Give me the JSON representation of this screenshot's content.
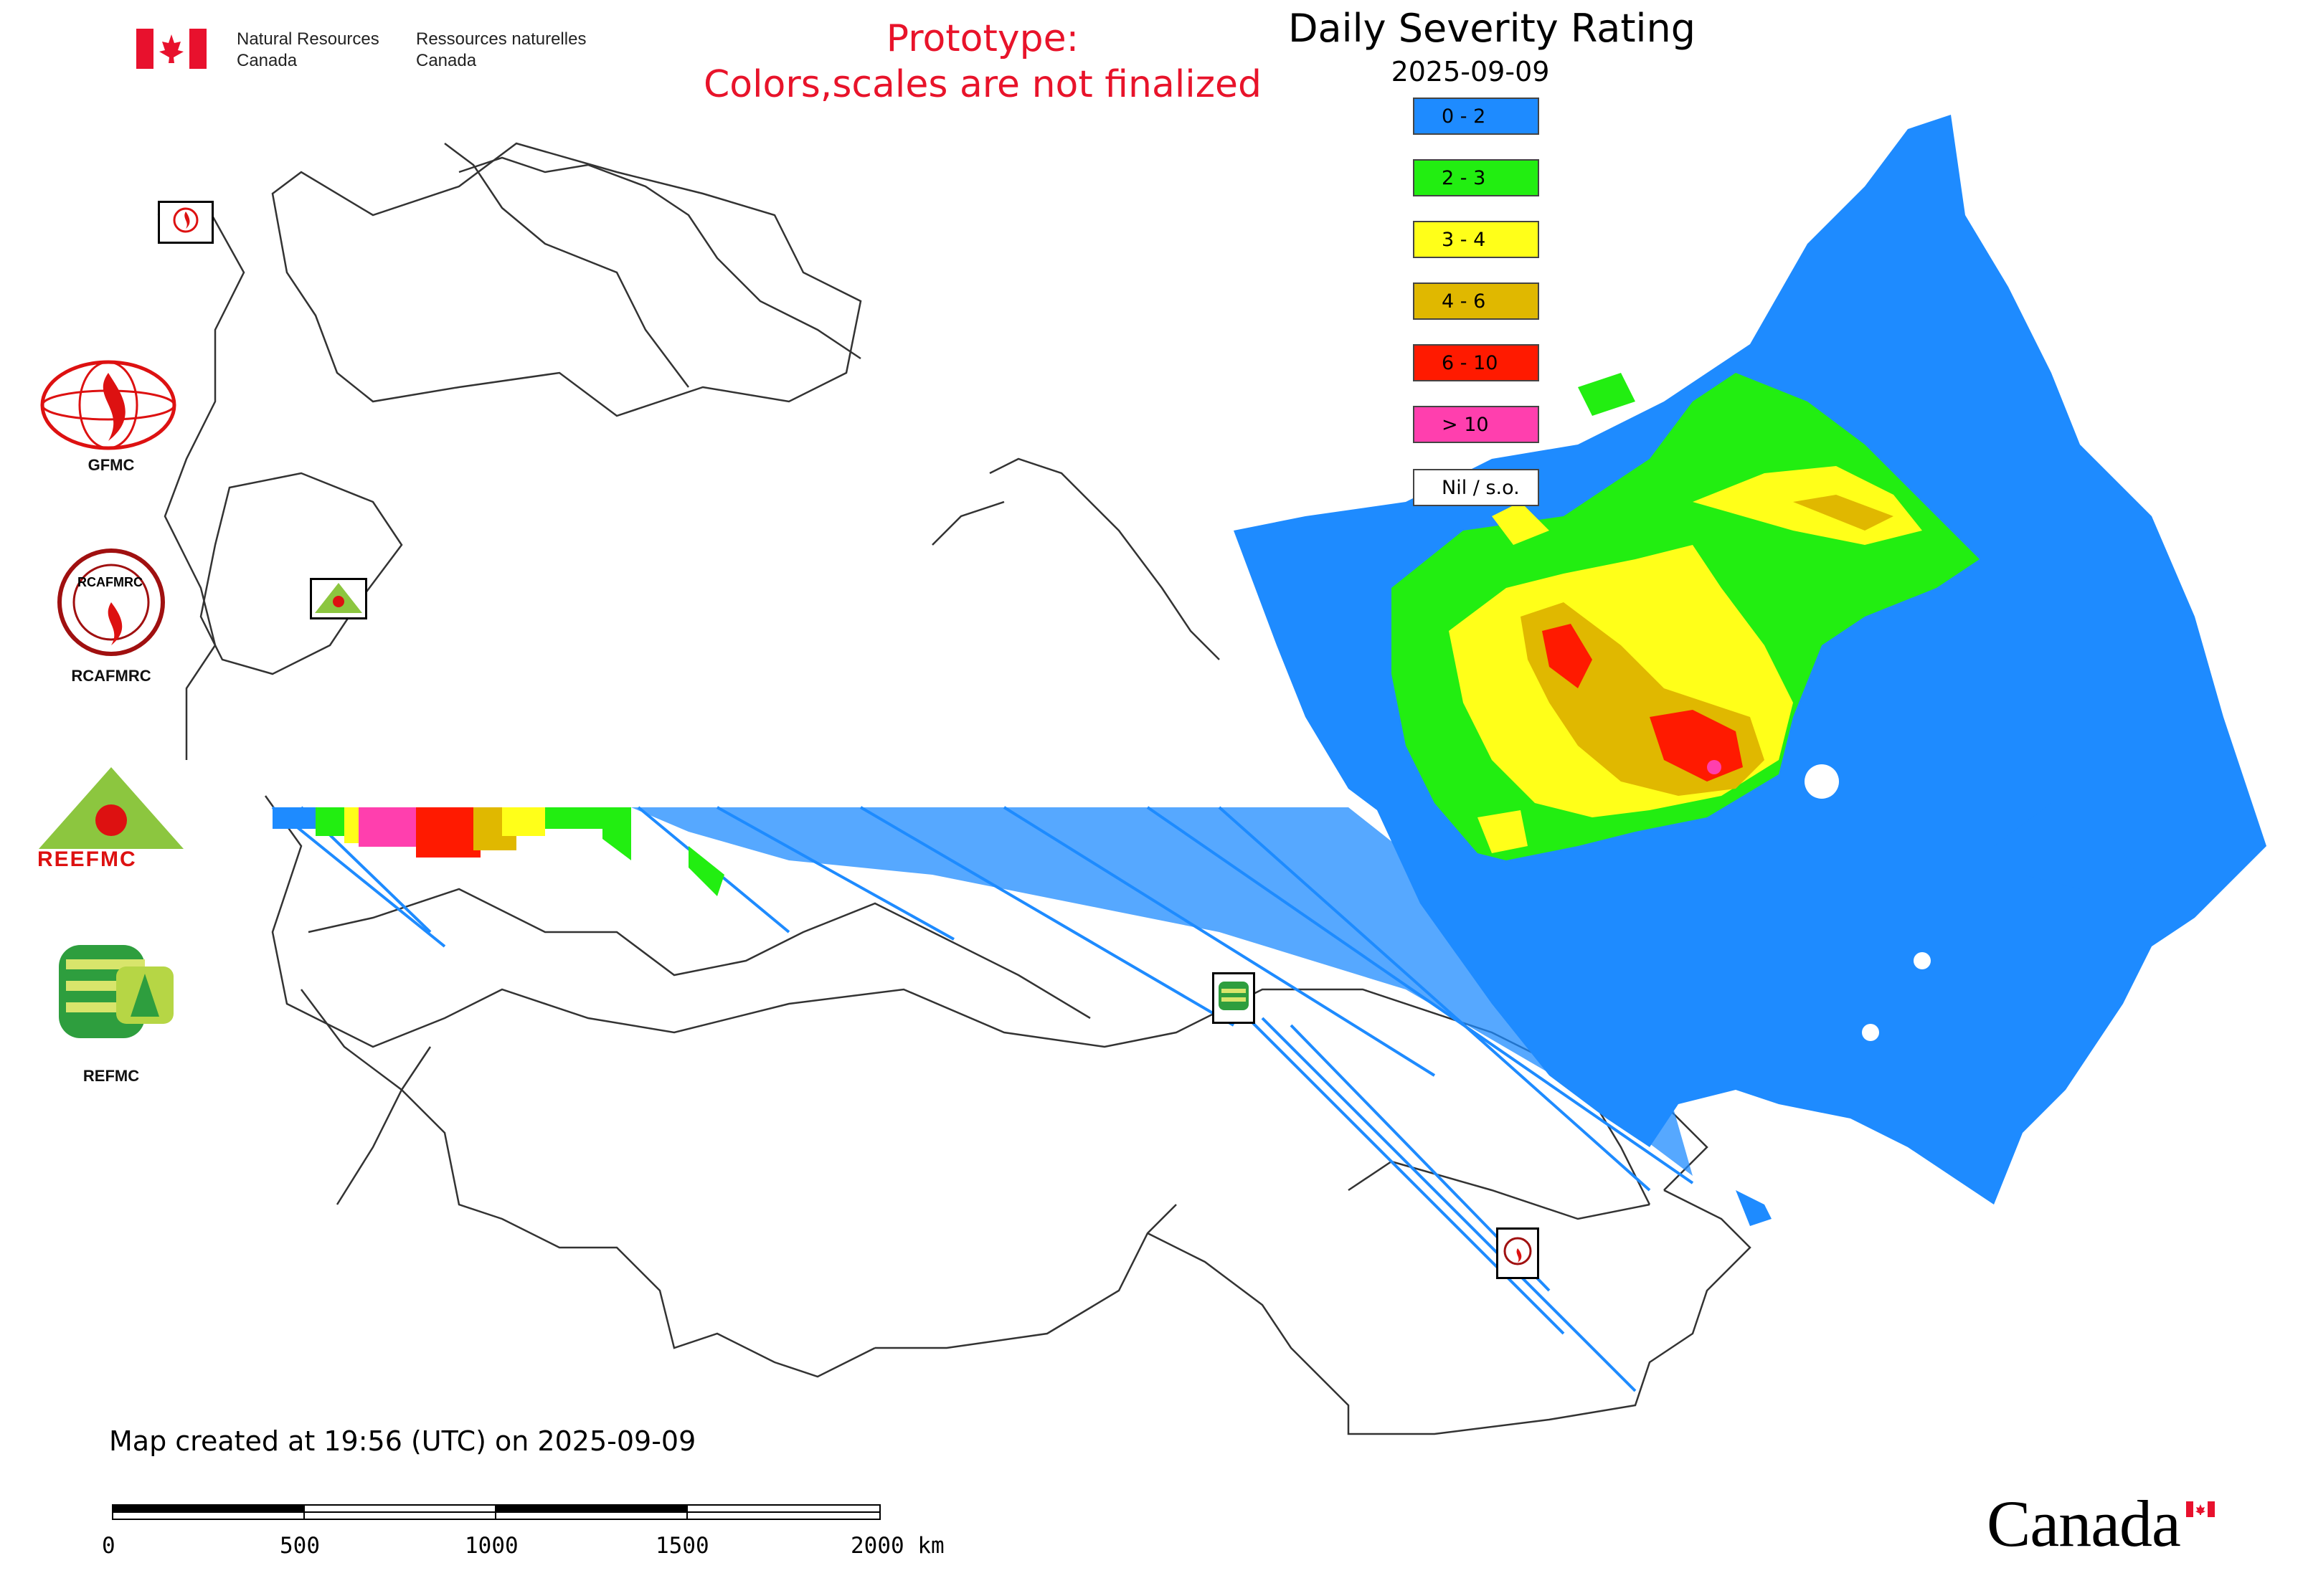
{
  "header": {
    "agency_en_line1": "Natural Resources",
    "agency_en_line2": "Canada",
    "agency_fr_line1": "Ressources naturelles",
    "agency_fr_line2": "Canada",
    "prototype_line1": "Prototype:",
    "prototype_line2": "Colors,scales are not finalized"
  },
  "legend": {
    "title": "Daily Severity Rating",
    "date": "2025-09-09",
    "items": [
      {
        "label": "0 - 2",
        "color": "#1e8bff"
      },
      {
        "label": "2 - 3",
        "color": "#22ee11"
      },
      {
        "label": "3 - 4",
        "color": "#ffff19"
      },
      {
        "label": "4 - 6",
        "color": "#e0b800"
      },
      {
        "label": "6 - 10",
        "color": "#ff1a00"
      },
      {
        "label": "> 10",
        "color": "#ff3fae"
      },
      {
        "label": "Nil / s.o.",
        "color": "#ffffff"
      }
    ]
  },
  "logos": {
    "gfmc": "GFMC",
    "rcafmrc": "RCAFMRC",
    "reefmc": "REEFMC",
    "refmc": "REFMC",
    "reefmc_wordmark": "REEFMC",
    "rcafmrc_wordmark": "RCAFMRC"
  },
  "footer": {
    "caption": "Map created at 19:56 (UTC) on 2025-09-09",
    "scale_labels": [
      "0",
      "500",
      "1000",
      "1500",
      "2000 km"
    ],
    "wordmark": "Canada"
  },
  "colors": {
    "prototype_text": "#e8132a",
    "flag_red": "#e8112d",
    "border_lines": "#333333"
  }
}
